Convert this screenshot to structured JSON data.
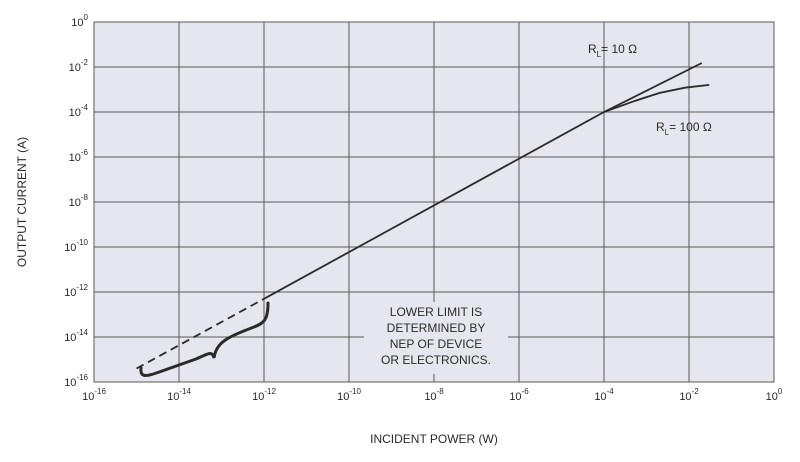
{
  "chart_data": {
    "type": "line",
    "xlabel": "INCIDENT POWER (W)",
    "ylabel": "OUTPUT CURRENT (A)",
    "x_scale": "log",
    "y_scale": "log",
    "xlim": [
      1e-16,
      1
    ],
    "ylim": [
      1e-16,
      1
    ],
    "grid": true,
    "x_ticks": [
      {
        "base": "10",
        "exp": "-16",
        "value": 1e-16
      },
      {
        "base": "10",
        "exp": "-14",
        "value": 1e-14
      },
      {
        "base": "10",
        "exp": "-12",
        "value": 1e-12
      },
      {
        "base": "10",
        "exp": "-10",
        "value": 1e-10
      },
      {
        "base": "10",
        "exp": "-8",
        "value": 1e-08
      },
      {
        "base": "10",
        "exp": "-6",
        "value": 1e-06
      },
      {
        "base": "10",
        "exp": "-4",
        "value": 0.0001
      },
      {
        "base": "10",
        "exp": "-2",
        "value": 0.01
      },
      {
        "base": "10",
        "exp": "0",
        "value": 1
      }
    ],
    "y_ticks": [
      {
        "base": "10",
        "exp": "0",
        "value": 1
      },
      {
        "base": "10",
        "exp": "-2",
        "value": 0.01
      },
      {
        "base": "10",
        "exp": "-4",
        "value": 0.0001
      },
      {
        "base": "10",
        "exp": "-6",
        "value": 1e-06
      },
      {
        "base": "10",
        "exp": "-8",
        "value": 1e-08
      },
      {
        "base": "10",
        "exp": "-10",
        "value": 1e-10
      },
      {
        "base": "10",
        "exp": "-12",
        "value": 1e-12
      },
      {
        "base": "10",
        "exp": "-14",
        "value": 1e-14
      },
      {
        "base": "10",
        "exp": "-16",
        "value": 1e-16
      }
    ],
    "series": [
      {
        "label_base": "R",
        "label_sub": "L",
        "label_rest": "= 10 Ω",
        "style": "solid",
        "points": [
          [
            1e-12,
            5e-13
          ],
          [
            0.0001,
            0.0001
          ],
          [
            0.02,
            0.015
          ]
        ]
      },
      {
        "label_base": "R",
        "label_sub": "L",
        "label_rest": "= 100 Ω",
        "style": "solid",
        "points": [
          [
            0.0001,
            0.0001
          ],
          [
            0.0005,
            0.0003
          ],
          [
            0.002,
            0.0007
          ],
          [
            0.008,
            0.0012
          ],
          [
            0.03,
            0.0016
          ]
        ]
      },
      {
        "style": "dashed",
        "points": [
          [
            1e-15,
            4e-16
          ],
          [
            1e-12,
            5e-13
          ]
        ]
      }
    ],
    "annotation": {
      "lines": [
        "LOWER LIMIT IS",
        "DETERMINED BY",
        "NEP OF DEVICE",
        "OR ELECTRONICS."
      ]
    },
    "colors": {
      "plot_background": "#e6e7ee",
      "grid": "#5a5a5a",
      "curve": "#2a2a2a",
      "text": "#2a2a2a"
    }
  }
}
